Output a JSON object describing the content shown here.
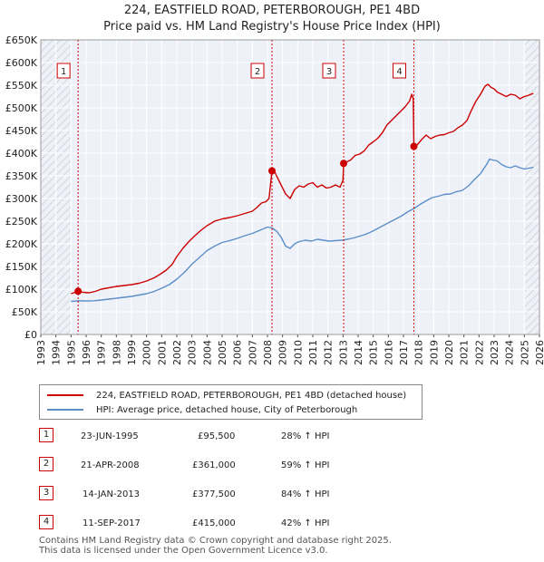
{
  "title_line1": "224, EASTFIELD ROAD, PETERBOROUGH, PE1 4BD",
  "title_line2": "Price paid vs. HM Land Registry's House Price Index (HPI)",
  "chart_data": {
    "type": "line",
    "title": "224, EASTFIELD ROAD, PETERBOROUGH, PE1 4BD — Price paid vs. HM Land Registry's House Price Index (HPI)",
    "xlabel": "",
    "ylabel": "",
    "xlim": [
      1993,
      2026
    ],
    "ylim": [
      0,
      650000
    ],
    "x_ticks": [
      "1993",
      "1994",
      "1995",
      "1996",
      "1997",
      "1998",
      "1999",
      "2000",
      "2001",
      "2002",
      "2003",
      "2004",
      "2005",
      "2006",
      "2007",
      "2008",
      "2009",
      "2010",
      "2011",
      "2012",
      "2013",
      "2014",
      "2015",
      "2016",
      "2017",
      "2018",
      "2019",
      "2020",
      "2021",
      "2022",
      "2023",
      "2024",
      "2025",
      "2026"
    ],
    "y_ticks": [
      {
        "value": 0,
        "label": "£0"
      },
      {
        "value": 50000,
        "label": "£50K"
      },
      {
        "value": 100000,
        "label": "£100K"
      },
      {
        "value": 150000,
        "label": "£150K"
      },
      {
        "value": 200000,
        "label": "£200K"
      },
      {
        "value": 250000,
        "label": "£250K"
      },
      {
        "value": 300000,
        "label": "£300K"
      },
      {
        "value": 350000,
        "label": "£350K"
      },
      {
        "value": 400000,
        "label": "£400K"
      },
      {
        "value": 450000,
        "label": "£450K"
      },
      {
        "value": 500000,
        "label": "£500K"
      },
      {
        "value": 550000,
        "label": "£550K"
      },
      {
        "value": 600000,
        "label": "£600K"
      },
      {
        "value": 650000,
        "label": "£650K"
      }
    ],
    "series": [
      {
        "name": "224, EASTFIELD ROAD, PETERBOROUGH, PE1 4BD (detached house)",
        "color": "#cc0000",
        "x": [
          1995.0,
          1995.47,
          1995.8,
          1996.2,
          1996.6,
          1997.0,
          1997.5,
          1998.0,
          1998.5,
          1999.0,
          1999.5,
          2000.0,
          2000.5,
          2000.9,
          2001.3,
          2001.7,
          2002.0,
          2002.4,
          2002.8,
          2003.2,
          2003.6,
          2004.0,
          2004.5,
          2005.0,
          2005.5,
          2006.0,
          2006.5,
          2007.0,
          2007.3,
          2007.6,
          2007.9,
          2008.1,
          2008.3,
          2008.4,
          2008.6,
          2008.9,
          2009.2,
          2009.5,
          2009.8,
          2010.1,
          2010.4,
          2010.7,
          2011.0,
          2011.3,
          2011.6,
          2011.9,
          2012.2,
          2012.5,
          2012.8,
          2013.0,
          2013.04,
          2013.2,
          2013.5,
          2013.8,
          2014.1,
          2014.4,
          2014.7,
          2015.0,
          2015.3,
          2015.6,
          2015.9,
          2016.2,
          2016.5,
          2016.8,
          2017.1,
          2017.4,
          2017.55,
          2017.65,
          2017.69,
          2017.9,
          2018.2,
          2018.5,
          2018.8,
          2019.1,
          2019.4,
          2019.7,
          2020.0,
          2020.3,
          2020.6,
          2020.9,
          2021.2,
          2021.5,
          2021.8,
          2022.1,
          2022.4,
          2022.6,
          2022.8,
          2023.0,
          2023.2,
          2023.5,
          2023.8,
          2024.1,
          2024.4,
          2024.7,
          2025.0,
          2025.3,
          2025.6
        ],
        "y": [
          90000,
          95500,
          93000,
          92000,
          95000,
          100000,
          103000,
          106000,
          108000,
          110000,
          113000,
          118000,
          125000,
          133000,
          142000,
          155000,
          172000,
          190000,
          205000,
          218000,
          230000,
          240000,
          250000,
          255000,
          258000,
          262000,
          267000,
          272000,
          280000,
          290000,
          293000,
          300000,
          361000,
          365000,
          350000,
          330000,
          310000,
          300000,
          320000,
          328000,
          325000,
          332000,
          335000,
          325000,
          330000,
          323000,
          325000,
          330000,
          325000,
          340000,
          377500,
          380000,
          385000,
          395000,
          398000,
          405000,
          418000,
          425000,
          433000,
          445000,
          462000,
          472000,
          482000,
          492000,
          502000,
          515000,
          530000,
          520000,
          415000,
          418000,
          430000,
          440000,
          432000,
          437000,
          440000,
          441000,
          445000,
          448000,
          456000,
          462000,
          472000,
          495000,
          515000,
          530000,
          548000,
          552000,
          545000,
          542000,
          535000,
          530000,
          525000,
          530000,
          528000,
          520000,
          525000,
          528000,
          532000
        ]
      },
      {
        "name": "HPI: Average price, detached house, City of Peterborough",
        "color": "#5b8ec9",
        "x": [
          1995.0,
          1995.5,
          1996.0,
          1996.5,
          1997.0,
          1997.5,
          1998.0,
          1998.5,
          1999.0,
          1999.5,
          2000.0,
          2000.5,
          2001.0,
          2001.5,
          2002.0,
          2002.5,
          2003.0,
          2003.5,
          2004.0,
          2004.5,
          2005.0,
          2005.5,
          2006.0,
          2006.5,
          2007.0,
          2007.5,
          2008.0,
          2008.3,
          2008.6,
          2008.9,
          2009.2,
          2009.5,
          2009.8,
          2010.1,
          2010.5,
          2010.9,
          2011.3,
          2011.7,
          2012.1,
          2012.5,
          2012.9,
          2013.3,
          2013.7,
          2014.1,
          2014.5,
          2014.9,
          2015.3,
          2015.7,
          2016.1,
          2016.5,
          2016.9,
          2017.3,
          2017.7,
          2018.1,
          2018.5,
          2018.9,
          2019.3,
          2019.7,
          2020.1,
          2020.5,
          2020.9,
          2021.3,
          2021.7,
          2022.1,
          2022.5,
          2022.7,
          2022.9,
          2023.2,
          2023.5,
          2023.8,
          2024.1,
          2024.4,
          2024.7,
          2025.0,
          2025.3,
          2025.6
        ],
        "y": [
          73000,
          74500,
          74000,
          74500,
          76000,
          78000,
          80000,
          82000,
          84000,
          87000,
          90000,
          95000,
          102000,
          110000,
          122000,
          137000,
          155000,
          170000,
          185000,
          195000,
          203000,
          207000,
          212000,
          218000,
          223000,
          230000,
          237000,
          235000,
          228000,
          215000,
          195000,
          190000,
          200000,
          205000,
          208000,
          206000,
          210000,
          208000,
          206000,
          207000,
          208000,
          210000,
          213000,
          217000,
          221000,
          227000,
          234000,
          241000,
          248000,
          255000,
          262000,
          271000,
          278000,
          287000,
          295000,
          302000,
          305000,
          309000,
          310000,
          315000,
          318000,
          328000,
          342000,
          355000,
          375000,
          387000,
          385000,
          383000,
          375000,
          370000,
          368000,
          372000,
          368000,
          365000,
          367000,
          369000
        ]
      }
    ],
    "annotations": [
      {
        "label": "1",
        "x": 1995.47,
        "y": 95500
      },
      {
        "label": "2",
        "x": 2008.3,
        "y": 361000
      },
      {
        "label": "3",
        "x": 2013.04,
        "y": 377500
      },
      {
        "label": "4",
        "x": 2017.69,
        "y": 415000
      }
    ],
    "hatched_ranges": [
      [
        1993,
        1995.0
      ],
      [
        2025.0,
        2026
      ]
    ],
    "grid": true
  },
  "legend": {
    "property_label": "224, EASTFIELD ROAD, PETERBOROUGH, PE1 4BD (detached house)",
    "hpi_label": "HPI: Average price, detached house, City of Peterborough"
  },
  "sales": [
    {
      "num": "1",
      "date": "23-JUN-1995",
      "price": "£95,500",
      "hpi": "28% ↑ HPI"
    },
    {
      "num": "2",
      "date": "21-APR-2008",
      "price": "£361,000",
      "hpi": "59% ↑ HPI"
    },
    {
      "num": "3",
      "date": "14-JAN-2013",
      "price": "£377,500",
      "hpi": "84% ↑ HPI"
    },
    {
      "num": "4",
      "date": "11-SEP-2017",
      "price": "£415,000",
      "hpi": "42% ↑ HPI"
    }
  ],
  "footer": {
    "line1": "Contains HM Land Registry data © Crown copyright and database right 2025.",
    "line2": "This data is licensed under the Open Government Licence v3.0."
  },
  "colors": {
    "property": "#cc0000",
    "hpi": "#5b8ec9",
    "plot_bg": "#eef2f8",
    "grid": "#ffffff",
    "marker": "#cc0000"
  }
}
